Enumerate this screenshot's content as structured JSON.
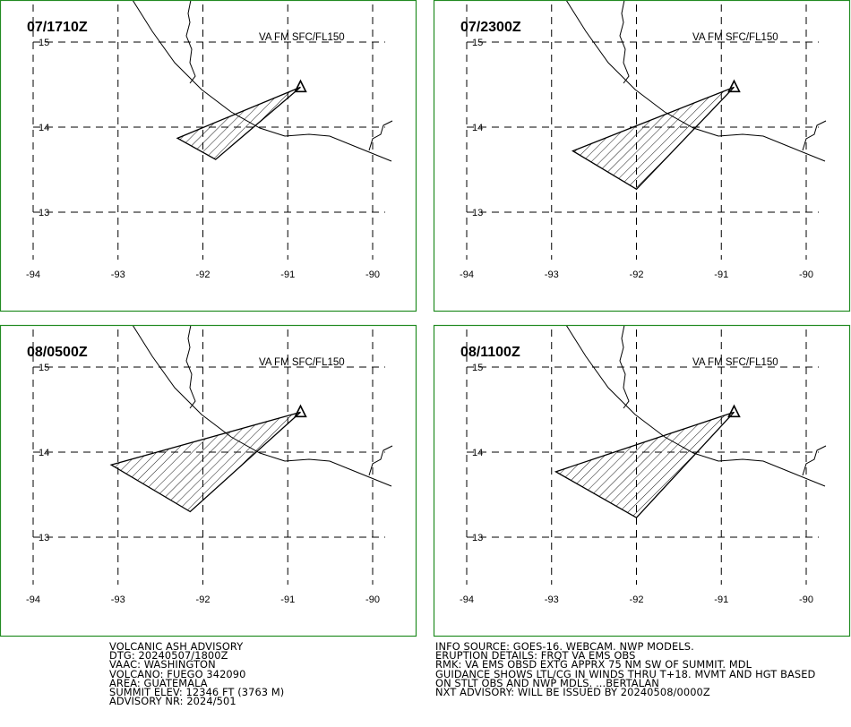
{
  "panels": [
    {
      "time_label": "07/1710Z",
      "layer_label": "VA FM SFC/FL150",
      "ash_polygon": [
        [
          -90.85,
          14.47
        ],
        [
          -91.85,
          13.62
        ],
        [
          -92.3,
          13.87
        ],
        [
          -90.85,
          14.47
        ]
      ]
    },
    {
      "time_label": "07/2300Z",
      "layer_label": "VA FM SFC/FL150",
      "ash_polygon": [
        [
          -90.85,
          14.47
        ],
        [
          -92.0,
          13.27
        ],
        [
          -92.75,
          13.72
        ],
        [
          -90.85,
          14.47
        ]
      ]
    },
    {
      "time_label": "08/0500Z",
      "layer_label": "VA FM SFC/FL150",
      "ash_polygon": [
        [
          -90.85,
          14.47
        ],
        [
          -92.15,
          13.3
        ],
        [
          -93.08,
          13.85
        ],
        [
          -90.85,
          14.47
        ]
      ]
    },
    {
      "time_label": "08/1100Z",
      "layer_label": "VA FM SFC/FL150",
      "ash_polygon": [
        [
          -90.85,
          14.47
        ],
        [
          -92.0,
          13.23
        ],
        [
          -92.95,
          13.77
        ],
        [
          -90.85,
          14.47
        ]
      ]
    }
  ],
  "map_axes": {
    "lat_labels": [
      "15",
      "14",
      "13"
    ],
    "lon_labels": [
      "-94",
      "-93",
      "-92",
      "-91",
      "-90"
    ],
    "lat_values": [
      15,
      14,
      13
    ],
    "lon_values": [
      -94,
      -93,
      -92,
      -91,
      -90
    ]
  },
  "volcano_marker": {
    "symbol": "triangle",
    "lon": -90.85,
    "lat": 14.47
  },
  "advisory_left": [
    "VOLCANIC ASH ADVISORY",
    "DTG: 20240507/1800Z",
    "VAAC: WASHINGTON",
    "VOLCANO: FUEGO 342090",
    "AREA: GUATEMALA",
    "SUMMIT ELEV: 12346 FT (3763 M)",
    "ADVISORY NR: 2024/501"
  ],
  "advisory_right": [
    "INFO SOURCE: GOES-16. WEBCAM. NWP MODELS.",
    "ERUPTION DETAILS: FRQT VA EMS OBS",
    "RMK: VA EMS OBSD EXTG APPRX 75 NM SW OF SUMMIT. MDL",
    "GUIDANCE SHOWS LTL/CG IN WINDS THRU T+18. MVMT AND HGT BASED",
    "ON STLT OBS AND NWP MDLS. ...BERTALAN",
    "NXT ADVISORY: WILL BE ISSUED BY 20240508/0000Z"
  ],
  "colors": {
    "frame": "#228b22",
    "line": "#000000",
    "background": "#ffffff"
  }
}
